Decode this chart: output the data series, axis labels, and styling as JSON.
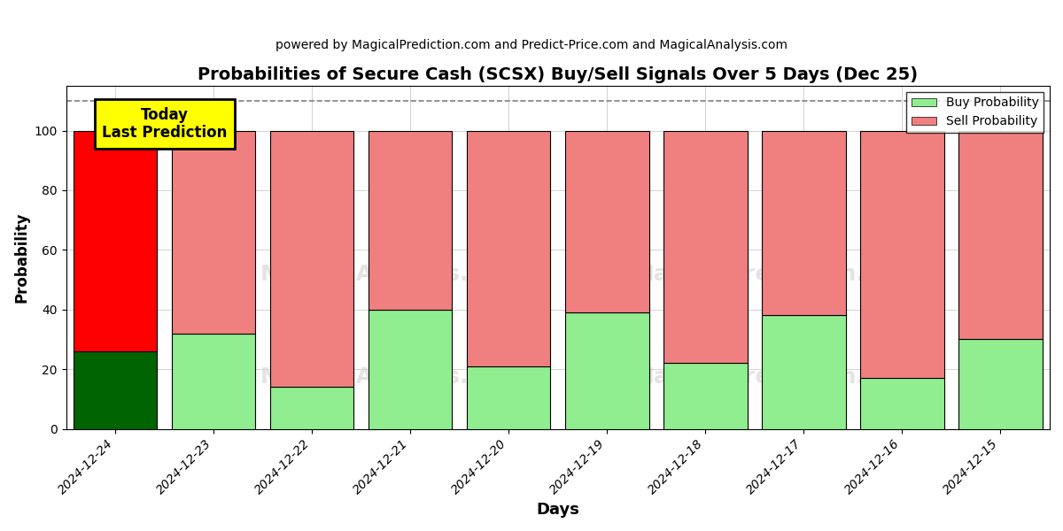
{
  "title": "Probabilities of Secure Cash (SCSX) Buy/Sell Signals Over 5 Days (Dec 25)",
  "subtitle": "powered by MagicalPrediction.com and Predict-Price.com and MagicalAnalysis.com",
  "xlabel": "Days",
  "ylabel": "Probability",
  "dates": [
    "2024-12-24",
    "2024-12-23",
    "2024-12-22",
    "2024-12-21",
    "2024-12-20",
    "2024-12-19",
    "2024-12-18",
    "2024-12-17",
    "2024-12-16",
    "2024-12-15"
  ],
  "buy_probs": [
    26,
    32,
    14,
    40,
    21,
    39,
    22,
    38,
    17,
    30
  ],
  "sell_probs": [
    74,
    68,
    86,
    60,
    79,
    61,
    78,
    62,
    83,
    70
  ],
  "today_buy_color": "#006400",
  "today_sell_color": "#ff0000",
  "buy_color": "#90ee90",
  "sell_color": "#f08080",
  "today_annotation": "Today\nLast Prediction",
  "today_annotation_bg": "#ffff00",
  "dashed_line_y": 110,
  "ylim": [
    0,
    115
  ],
  "yticks": [
    0,
    20,
    40,
    60,
    80,
    100
  ],
  "legend_buy_label": "Buy Probability",
  "legend_sell_label": "Sell Probability",
  "bar_width": 0.85
}
